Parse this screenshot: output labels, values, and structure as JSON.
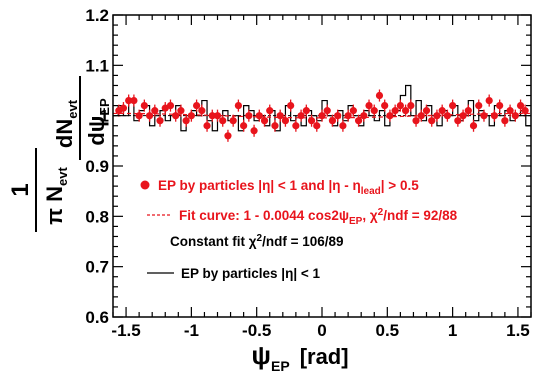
{
  "chart_data": {
    "type": "scatter",
    "title": "",
    "xlabel": {
      "main": "ψ",
      "sub": "EP",
      "unit": "[rad]"
    },
    "ylabel": {
      "num1": "1",
      "den1": "π N",
      "den1sub": "evt",
      "num2": "dN",
      "num2sub": "evt",
      "den2": "dψ",
      "den2sub": "EP"
    },
    "xlim": [
      -1.6,
      1.6
    ],
    "ylim": [
      0.6,
      1.2
    ],
    "xticks": [
      {
        "v": -1.5,
        "label": "-1.5"
      },
      {
        "v": -1.0,
        "label": "-1"
      },
      {
        "v": -0.5,
        "label": "-0.5"
      },
      {
        "v": 0.0,
        "label": "0"
      },
      {
        "v": 0.5,
        "label": "0.5"
      },
      {
        "v": 1.0,
        "label": "1"
      },
      {
        "v": 1.5,
        "label": "1.5"
      }
    ],
    "yticks": [
      {
        "v": 0.6,
        "label": "0.6"
      },
      {
        "v": 0.7,
        "label": "0.7"
      },
      {
        "v": 0.8,
        "label": "0.8"
      },
      {
        "v": 0.9,
        "label": "0.9"
      },
      {
        "v": 1.0,
        "label": "1"
      },
      {
        "v": 1.1,
        "label": "1.1"
      },
      {
        "v": 1.2,
        "label": "1.2"
      }
    ],
    "grid": false,
    "legend": {
      "placement": "bottom-left",
      "entries": [
        {
          "parts": [
            {
              "t": "EP by particles |η| < 1 and |η - η"
            },
            {
              "t": "lead",
              "sub": true
            },
            {
              "t": "| > 0.5"
            }
          ],
          "color": "#e8141c",
          "marker": "circle"
        },
        {
          "parts": [
            {
              "t": "Fit curve: 1 - 0.0044 cos2ψ"
            },
            {
              "t": "EP",
              "sub": true
            },
            {
              "t": ", χ"
            },
            {
              "t": "2",
              "sup": true
            },
            {
              "t": "/ndf = 92/88"
            }
          ],
          "color": "#e8141c",
          "marker": "dashed-line"
        },
        {
          "parts": [
            {
              "t": "Constant fit χ"
            },
            {
              "t": "2",
              "sup": true
            },
            {
              "t": "/ndf = 106/89"
            }
          ],
          "color": "#000000",
          "marker": "none"
        },
        {
          "parts": [
            {
              "t": "EP by particles |η| < 1"
            }
          ],
          "color": "#000000",
          "marker": "solid-line"
        }
      ]
    },
    "fit_curve": {
      "a": 0.0044,
      "color": "#e8141c",
      "style": "dashed"
    },
    "constant_line": {
      "y": 1.0,
      "color": "#000000"
    },
    "series": [
      {
        "name": "EP by particles |η| < 1 and |η - ηlead| > 0.5",
        "kind": "points",
        "color": "#e8141c",
        "yerr": 0.012,
        "x": [
          -1.555,
          -1.52,
          -1.48,
          -1.44,
          -1.4,
          -1.36,
          -1.32,
          -1.28,
          -1.24,
          -1.2,
          -1.16,
          -1.12,
          -1.08,
          -1.04,
          -1.0,
          -0.96,
          -0.92,
          -0.88,
          -0.84,
          -0.8,
          -0.76,
          -0.72,
          -0.68,
          -0.64,
          -0.6,
          -0.56,
          -0.52,
          -0.48,
          -0.44,
          -0.4,
          -0.36,
          -0.32,
          -0.28,
          -0.24,
          -0.2,
          -0.16,
          -0.12,
          -0.08,
          -0.04,
          0.0,
          0.04,
          0.08,
          0.12,
          0.16,
          0.2,
          0.24,
          0.28,
          0.32,
          0.36,
          0.4,
          0.44,
          0.48,
          0.52,
          0.56,
          0.6,
          0.64,
          0.68,
          0.72,
          0.76,
          0.8,
          0.84,
          0.88,
          0.92,
          0.96,
          1.0,
          1.04,
          1.08,
          1.12,
          1.16,
          1.2,
          1.24,
          1.28,
          1.32,
          1.36,
          1.4,
          1.44,
          1.48,
          1.52,
          1.555
        ],
        "y": [
          1.01,
          1.015,
          1.03,
          1.03,
          1.0,
          1.02,
          1.0,
          1.01,
          0.99,
          1.015,
          1.02,
          1.0,
          1.01,
          0.99,
          1.0,
          1.02,
          1.01,
          0.98,
          1.0,
          1.0,
          0.99,
          0.96,
          0.99,
          1.02,
          0.98,
          1.0,
          0.97,
          1.0,
          0.99,
          1.01,
          0.98,
          1.0,
          0.99,
          1.02,
          0.98,
          1.0,
          1.01,
          0.99,
          0.98,
          1.0,
          1.01,
          0.99,
          1.0,
          0.98,
          1.0,
          1.01,
          0.99,
          1.0,
          1.02,
          1.01,
          1.04,
          1.02,
          1.0,
          1.01,
          1.02,
          1.01,
          1.02,
          0.99,
          1.0,
          1.01,
          0.99,
          1.0,
          1.01,
          1.0,
          1.02,
          0.99,
          1.0,
          1.01,
          0.98,
          1.02,
          1.0,
          1.03,
          1.0,
          1.02,
          0.99,
          1.01,
          1.0,
          1.02,
          1.01
        ]
      },
      {
        "name": "EP by particles |η| < 1",
        "kind": "histogram",
        "color": "#000000",
        "bin_edges_start": -1.6,
        "bin_width": 0.04,
        "values": [
          1.0,
          1.02,
          1.0,
          1.03,
          0.99,
          1.01,
          1.02,
          0.98,
          1.0,
          1.01,
          0.99,
          1.0,
          1.02,
          0.97,
          1.0,
          1.01,
          1.0,
          1.03,
          0.99,
          0.97,
          1.0,
          1.01,
          0.99,
          1.0,
          0.97,
          1.02,
          1.01,
          0.99,
          1.0,
          0.98,
          1.01,
          0.97,
          1.0,
          1.02,
          0.99,
          1.0,
          0.98,
          1.01,
          1.0,
          0.99,
          1.03,
          1.0,
          0.98,
          1.01,
          0.99,
          1.02,
          1.0,
          0.98,
          1.01,
          1.0,
          0.99,
          1.01,
          0.98,
          1.0,
          1.01,
          1.04,
          1.06,
          1.0,
          1.03,
          0.99,
          1.02,
          1.0,
          0.98,
          1.01,
          1.0,
          1.02,
          0.99,
          1.0,
          1.03,
          0.99,
          1.01,
          1.0,
          0.98,
          1.02,
          1.0,
          1.01,
          0.99,
          1.0,
          1.01,
          0.98
        ]
      }
    ]
  }
}
